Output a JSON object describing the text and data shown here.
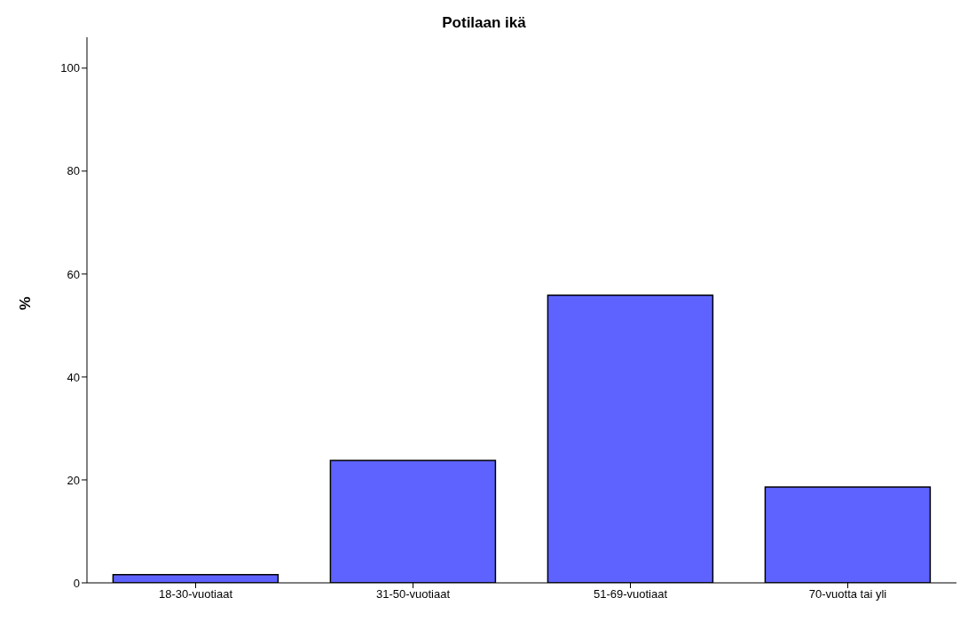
{
  "chart_data": {
    "type": "bar",
    "title": "Potilaan ikä",
    "ylabel": "%",
    "categories": [
      "18-30-vuotiaat",
      "31-50-vuotiaat",
      "51-69-vuotiaat",
      "70-vuotta tai yli"
    ],
    "values": [
      1.6,
      23.8,
      55.9,
      18.6
    ],
    "color": "#5e63ff",
    "ylim": [
      0,
      106
    ],
    "yticks": [
      0,
      20,
      40,
      60,
      80,
      100
    ],
    "grid": false
  }
}
